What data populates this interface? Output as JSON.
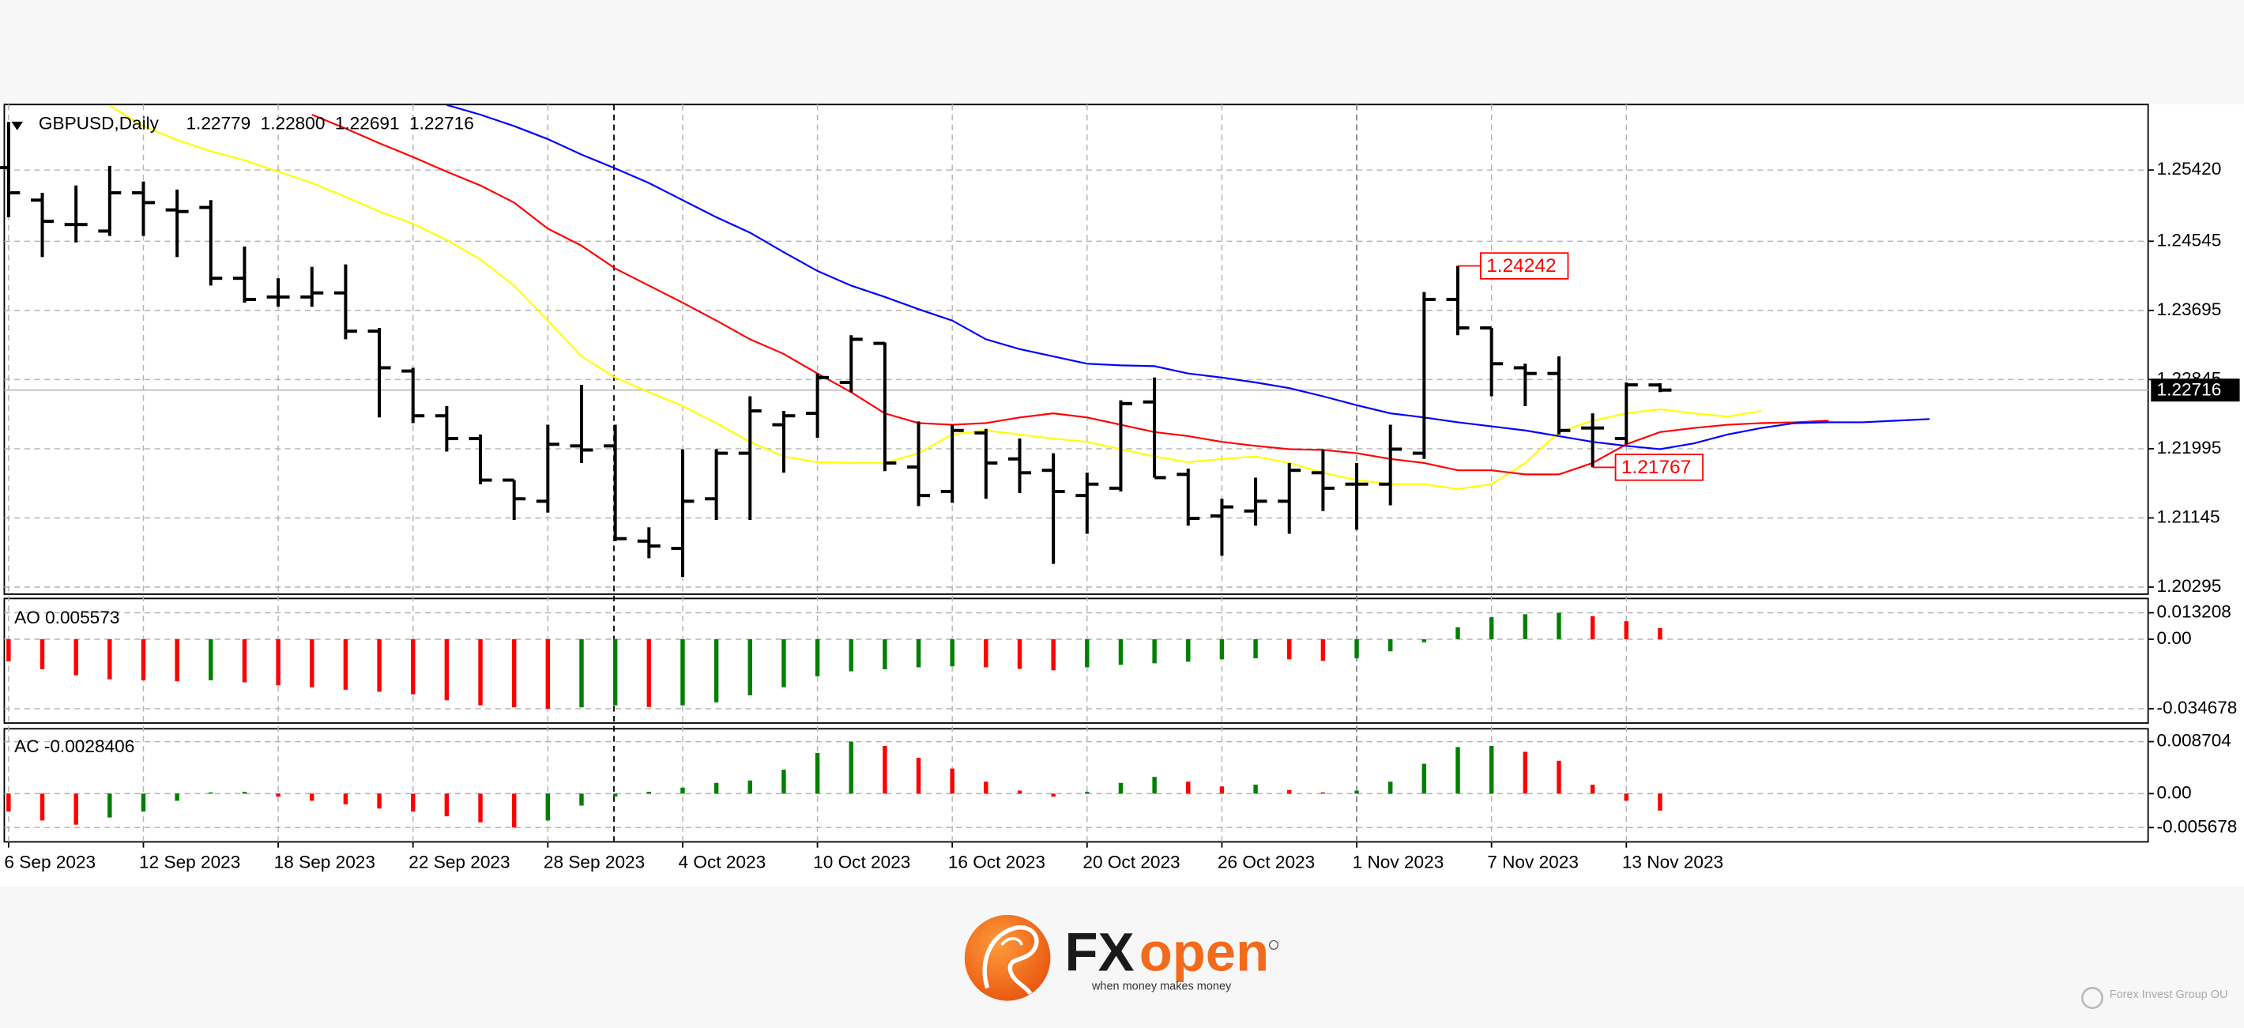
{
  "chart_data": [
    {
      "type": "ohlc",
      "title": "GBPUSD,Daily",
      "header_values": [
        "1.22779",
        "1.22800",
        "1.22691",
        "1.22716"
      ],
      "categories": [
        "6 Sep 2023",
        null,
        null,
        null,
        "12 Sep 2023",
        null,
        null,
        null,
        "18 Sep 2023",
        null,
        null,
        null,
        "22 Sep 2023",
        null,
        null,
        null,
        "28 Sep 2023",
        null,
        null,
        null,
        "4 Oct 2023",
        null,
        null,
        null,
        "10 Oct 2023",
        null,
        null,
        null,
        "16 Oct 2023",
        null,
        null,
        null,
        "20 Oct 2023",
        null,
        null,
        null,
        "26 Oct 2023",
        null,
        null,
        null,
        "1 Nov 2023",
        null,
        null,
        null,
        "7 Nov 2023",
        null,
        null,
        null,
        "13 Nov 2023",
        null,
        null,
        null,
        null,
        null,
        null,
        null,
        null,
        null
      ],
      "open": [
        1.2545,
        1.2505,
        1.2475,
        1.2467,
        1.2514,
        1.2493,
        1.2496,
        1.2409,
        1.2386,
        1.2386,
        1.2391,
        1.2344,
        1.2295,
        1.224,
        1.2212,
        1.2161,
        1.2135,
        1.2203,
        1.2203,
        1.2086,
        1.2077,
        1.2138,
        1.2194,
        1.2229,
        1.2243,
        1.2281,
        1.2329,
        1.2177,
        1.2147,
        1.2219,
        1.2187,
        1.2173,
        1.2142,
        1.2151,
        1.2257,
        1.2168,
        1.2117,
        1.2123,
        1.2135,
        1.217,
        1.2156,
        1.2156,
        1.2194,
        1.2383,
        1.2348,
        1.2299,
        1.2292,
        1.2225,
        1.2212,
        1.22779,
        null,
        null,
        null,
        null,
        null,
        null,
        null,
        null
      ],
      "high": [
        1.2601,
        1.2514,
        1.2523,
        1.2547,
        1.2528,
        1.2518,
        1.2505,
        1.2448,
        1.2409,
        1.2423,
        1.2426,
        1.2348,
        1.2299,
        1.2252,
        1.2217,
        1.2161,
        1.2229,
        1.2278,
        1.2229,
        1.2103,
        1.2199,
        1.2199,
        1.2264,
        1.2246,
        1.2292,
        1.2339,
        1.233,
        1.2233,
        1.2229,
        1.2224,
        1.2212,
        1.2194,
        1.217,
        1.2259,
        1.2287,
        1.2175,
        1.2138,
        1.2164,
        1.2182,
        1.2199,
        1.2182,
        1.2229,
        1.2392,
        1.24242,
        1.2348,
        1.2304,
        1.2313,
        1.2243,
        1.2281,
        1.228,
        null,
        null,
        null,
        null,
        null,
        null,
        null,
        null
      ],
      "low": [
        1.2484,
        1.2435,
        1.2453,
        1.2461,
        1.2461,
        1.2435,
        1.24,
        1.2379,
        1.2374,
        1.2374,
        1.2334,
        1.2238,
        1.2231,
        1.2196,
        1.2156,
        1.2112,
        1.2121,
        1.2182,
        1.2086,
        1.2065,
        1.2042,
        1.2112,
        1.2112,
        1.217,
        1.2213,
        1.2269,
        1.2172,
        1.2129,
        1.2133,
        1.2138,
        1.2145,
        1.2058,
        1.2095,
        1.2147,
        1.2164,
        1.2105,
        1.2068,
        1.2105,
        1.2095,
        1.2123,
        1.21,
        1.213,
        1.2187,
        1.2339,
        1.2264,
        1.2252,
        1.2217,
        1.21767,
        1.2205,
        1.22691,
        null,
        null,
        null,
        null,
        null,
        null,
        null,
        null
      ],
      "close": [
        1.2514,
        1.2479,
        1.2475,
        1.2514,
        1.2502,
        1.2491,
        1.2409,
        1.2383,
        1.2386,
        1.2391,
        1.2344,
        1.2299,
        1.224,
        1.2212,
        1.2161,
        1.2138,
        1.2205,
        1.2198,
        1.2089,
        1.208,
        1.2135,
        1.2194,
        1.2246,
        1.224,
        1.2287,
        1.2334,
        1.2182,
        1.2142,
        1.2222,
        1.2182,
        1.217,
        1.2147,
        1.2156,
        1.2255,
        1.2164,
        1.2114,
        1.2128,
        1.2135,
        1.2173,
        1.2151,
        1.2156,
        1.2199,
        1.2383,
        1.2348,
        1.2304,
        1.2292,
        1.2222,
        1.2225,
        1.2278,
        1.22716,
        null,
        null,
        null,
        null,
        null,
        null,
        null,
        null
      ],
      "color": "#000000",
      "lines": [
        {
          "color": "#ffff00",
          "values": [
            null,
            null,
            null,
            1.2621,
            1.2596,
            1.2579,
            1.2565,
            1.2554,
            1.254,
            1.2526,
            1.2509,
            1.2491,
            1.2476,
            1.2456,
            1.2432,
            1.24,
            1.2357,
            1.2313,
            1.2287,
            1.2269,
            1.2252,
            1.2231,
            1.2208,
            1.219,
            1.2183,
            1.2182,
            1.2182,
            1.2194,
            1.2217,
            1.2222,
            1.2217,
            1.2212,
            1.2208,
            1.2199,
            1.219,
            1.2183,
            1.2187,
            1.219,
            1.2182,
            1.217,
            1.2161,
            1.2156,
            1.2156,
            1.215,
            1.2156,
            1.2182,
            1.222,
            1.2234,
            1.2243,
            1.2248,
            1.2243,
            1.2239,
            1.2246,
            null,
            null,
            null,
            null,
            null
          ]
        },
        {
          "color": "#ff0000",
          "values": [
            null,
            null,
            null,
            null,
            null,
            null,
            null,
            null,
            null,
            1.261,
            1.2593,
            1.2575,
            1.2558,
            1.254,
            1.2523,
            1.2502,
            1.247,
            1.2449,
            1.2421,
            1.24,
            1.2379,
            1.2357,
            1.2334,
            1.2316,
            1.2292,
            1.2269,
            1.2243,
            1.2231,
            1.2229,
            1.2231,
            1.2238,
            1.2243,
            1.2238,
            1.2229,
            1.222,
            1.2215,
            1.2208,
            1.2203,
            1.2199,
            1.2198,
            1.2194,
            1.2187,
            1.2182,
            1.2173,
            1.2173,
            1.2168,
            1.2168,
            1.2182,
            1.2205,
            1.222,
            1.2225,
            1.2229,
            1.2231,
            1.2232,
            1.2234,
            null,
            null,
            null
          ]
        },
        {
          "color": "#0000ff",
          "values": [
            null,
            null,
            null,
            null,
            null,
            null,
            null,
            null,
            null,
            null,
            null,
            null,
            null,
            1.2622,
            1.261,
            1.2596,
            1.258,
            1.2561,
            1.2544,
            1.2526,
            1.2505,
            1.2484,
            1.2465,
            1.2441,
            1.2418,
            1.24,
            1.2386,
            1.2371,
            1.2357,
            1.2334,
            1.2322,
            1.2313,
            1.2304,
            1.2302,
            1.2301,
            1.2292,
            1.2287,
            1.2281,
            1.2274,
            1.2264,
            1.2253,
            1.2243,
            1.2238,
            1.2232,
            1.2227,
            1.2222,
            1.2215,
            1.2208,
            1.2203,
            1.2199,
            1.2206,
            1.2217,
            1.2225,
            1.2231,
            1.2232,
            1.2232,
            1.2234,
            1.2236
          ]
        }
      ],
      "ylim": [
        1.20208,
        1.26225
      ],
      "yticks": [
        {
          "value": 1.2542,
          "label": "1.25420"
        },
        1.24545,
        1.23695,
        1.22845,
        1.21995,
        1.21145,
        1.20295
      ],
      "grid": true,
      "current_price": 1.22716,
      "annotations": [
        1.24242,
        1.21767
      ],
      "annotation_color": "#ff0000"
    },
    {
      "type": "bar",
      "title": "AO 0.005573",
      "values": [
        -0.011,
        -0.015,
        -0.018,
        -0.02,
        -0.0205,
        -0.021,
        -0.0205,
        -0.0215,
        -0.023,
        -0.024,
        -0.0252,
        -0.0262,
        -0.0275,
        -0.0305,
        -0.033,
        -0.034,
        -0.034678,
        -0.034,
        -0.033,
        -0.0338,
        -0.033,
        -0.0315,
        -0.028,
        -0.024,
        -0.0185,
        -0.016,
        -0.015,
        -0.014,
        -0.0135,
        -0.014,
        -0.0148,
        -0.0155,
        -0.014,
        -0.0128,
        -0.012,
        -0.0112,
        -0.01,
        -0.0095,
        -0.01,
        -0.0108,
        -0.0095,
        -0.006,
        -0.0015,
        0.006,
        0.011,
        0.0125,
        0.013208,
        0.0115,
        0.009,
        0.005573,
        null,
        null,
        null,
        null,
        null,
        null,
        null,
        null
      ],
      "up_color": "#008000",
      "down_color": "#ff0000",
      "ylim": [
        -0.0404,
        0.01893
      ],
      "yticks": [
        0.013208,
        {
          "value": 0,
          "label": "0.00"
        },
        -0.034678
      ],
      "grid": true
    },
    {
      "type": "bar",
      "title": "AC -0.0028406",
      "values": [
        -0.003,
        -0.0045,
        -0.0052,
        -0.004,
        -0.003,
        -0.0012,
        0.0002,
        0.0003,
        -0.0005,
        -0.0012,
        -0.0018,
        -0.0025,
        -0.003,
        -0.0038,
        -0.0048,
        -0.005678,
        -0.0045,
        -0.002,
        -0.0005,
        0.0003,
        0.001,
        0.0018,
        0.0022,
        0.004,
        0.0068,
        0.008704,
        0.008,
        0.006,
        0.0042,
        0.002,
        0.0005,
        -0.0005,
        0.0003,
        0.0018,
        0.0028,
        0.002,
        0.0012,
        0.0015,
        0.0006,
        0.0002,
        0.0005,
        0.002,
        0.005,
        0.0078,
        0.008,
        0.007,
        0.0055,
        0.0015,
        -0.0012,
        -0.0028406,
        null,
        null,
        null,
        null,
        null,
        null,
        null,
        null
      ],
      "up_color": "#008000",
      "down_color": "#ff0000",
      "ylim": [
        -0.00808,
        0.01062
      ],
      "yticks": [
        0.008704,
        {
          "value": 0,
          "label": "0.00"
        },
        -0.005678
      ],
      "grid": true
    }
  ],
  "branding": {
    "logo": [
      "FX",
      "open"
    ],
    "tagline": "when money makes money",
    "company": "Forex Invest Group OU"
  }
}
